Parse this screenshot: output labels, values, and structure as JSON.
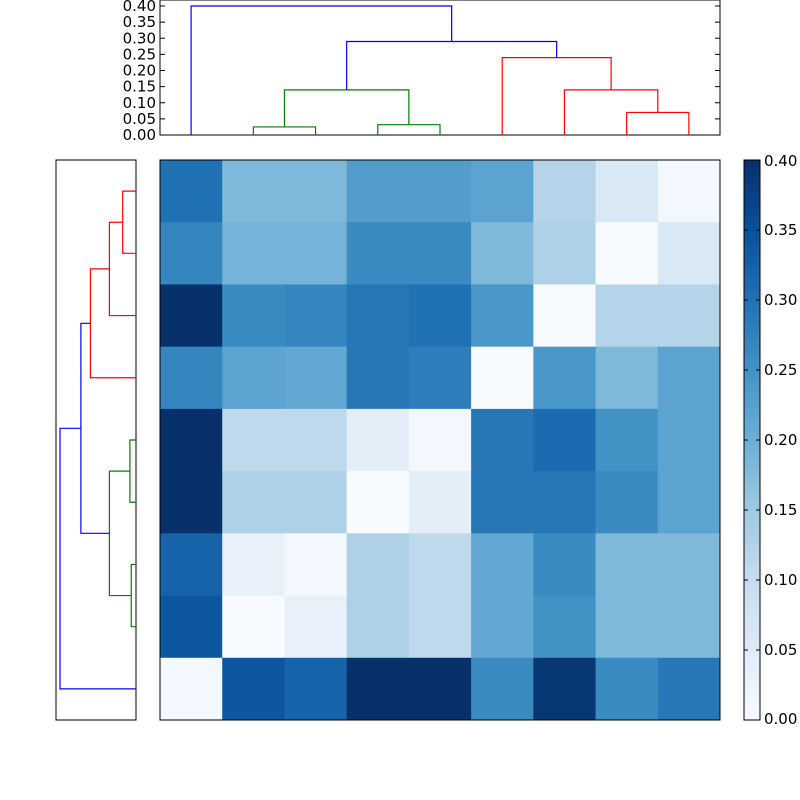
{
  "chart_data": [
    {
      "type": "dendrogram",
      "orientation": "top",
      "ylim": [
        0,
        0.4
      ],
      "yticks": [
        "0.00",
        "0.05",
        "0.10",
        "0.15",
        "0.20",
        "0.25",
        "0.30",
        "0.35",
        "0.40"
      ],
      "links": [
        {
          "xs": [
            1.5,
            1.5,
            2.5,
            2.5
          ],
          "ys": [
            0,
            0.025,
            0.025,
            0
          ],
          "color": "#008000"
        },
        {
          "xs": [
            3.5,
            3.5,
            4.5,
            4.5
          ],
          "ys": [
            0,
            0.032,
            0.032,
            0
          ],
          "color": "#008000"
        },
        {
          "xs": [
            2.0,
            2.0,
            4.0,
            4.0
          ],
          "ys": [
            0.025,
            0.14,
            0.14,
            0.032
          ],
          "color": "#008000"
        },
        {
          "xs": [
            7.5,
            7.5,
            8.5,
            8.5
          ],
          "ys": [
            0,
            0.07,
            0.07,
            0
          ],
          "color": "#ff0000"
        },
        {
          "xs": [
            6.5,
            6.5,
            8.0,
            8.0
          ],
          "ys": [
            0,
            0.14,
            0.14,
            0.07
          ],
          "color": "#ff0000"
        },
        {
          "xs": [
            5.5,
            5.5,
            7.25,
            7.25
          ],
          "ys": [
            0,
            0.24,
            0.24,
            0.14
          ],
          "color": "#ff0000"
        },
        {
          "xs": [
            3.0,
            3.0,
            6.375,
            6.375
          ],
          "ys": [
            0.14,
            0.29,
            0.29,
            0.24
          ],
          "color": "#0000ff"
        },
        {
          "xs": [
            0.5,
            0.5,
            4.6875,
            4.6875
          ],
          "ys": [
            0,
            0.4,
            0.4,
            0.29
          ],
          "color": "#0000ff"
        }
      ]
    },
    {
      "type": "dendrogram",
      "orientation": "left",
      "links": [
        {
          "ys": [
            1.5,
            1.5,
            2.5,
            2.5
          ],
          "xs": [
            0,
            0.025,
            0.025,
            0
          ],
          "color": "#008000"
        },
        {
          "ys": [
            3.5,
            3.5,
            4.5,
            4.5
          ],
          "xs": [
            0,
            0.032,
            0.032,
            0
          ],
          "color": "#008000"
        },
        {
          "ys": [
            2.0,
            2.0,
            4.0,
            4.0
          ],
          "xs": [
            0.025,
            0.14,
            0.14,
            0.032
          ],
          "color": "#008000"
        },
        {
          "ys": [
            7.5,
            7.5,
            8.5,
            8.5
          ],
          "xs": [
            0,
            0.07,
            0.07,
            0
          ],
          "color": "#ff0000"
        },
        {
          "ys": [
            6.5,
            6.5,
            8.0,
            8.0
          ],
          "xs": [
            0,
            0.14,
            0.14,
            0.07
          ],
          "color": "#ff0000"
        },
        {
          "ys": [
            5.5,
            5.5,
            7.25,
            7.25
          ],
          "xs": [
            0,
            0.24,
            0.24,
            0.14
          ],
          "color": "#ff0000"
        },
        {
          "ys": [
            3.0,
            3.0,
            6.375,
            6.375
          ],
          "xs": [
            0.14,
            0.29,
            0.29,
            0.24
          ],
          "color": "#0000ff"
        },
        {
          "ys": [
            0.5,
            0.5,
            4.6875,
            4.6875
          ],
          "xs": [
            0,
            0.4,
            0.4,
            0.29
          ],
          "color": "#0000ff"
        }
      ],
      "xlim": [
        0,
        0.4
      ]
    },
    {
      "type": "heatmap",
      "colormap": "Blues",
      "vmin": 0,
      "vmax": 0.4,
      "values": [
        [
          0.3,
          0.18,
          0.18,
          0.23,
          0.23,
          0.22,
          0.12,
          0.06,
          0.01
        ],
        [
          0.27,
          0.19,
          0.19,
          0.26,
          0.26,
          0.18,
          0.13,
          0.0,
          0.06
        ],
        [
          0.4,
          0.26,
          0.27,
          0.29,
          0.3,
          0.24,
          0.0,
          0.12,
          0.12
        ],
        [
          0.27,
          0.22,
          0.21,
          0.29,
          0.28,
          0.0,
          0.24,
          0.18,
          0.22
        ],
        [
          0.4,
          0.11,
          0.11,
          0.04,
          0.01,
          0.29,
          0.31,
          0.25,
          0.22
        ],
        [
          0.4,
          0.13,
          0.13,
          0.0,
          0.04,
          0.29,
          0.29,
          0.26,
          0.22
        ],
        [
          0.32,
          0.03,
          0.01,
          0.13,
          0.11,
          0.21,
          0.26,
          0.18,
          0.18
        ],
        [
          0.34,
          0.0,
          0.03,
          0.13,
          0.11,
          0.21,
          0.25,
          0.18,
          0.18
        ],
        [
          0.01,
          0.34,
          0.32,
          0.4,
          0.4,
          0.26,
          0.39,
          0.26,
          0.29
        ]
      ]
    },
    {
      "type": "colorbar",
      "vmin": 0,
      "vmax": 0.4,
      "tick_values": [
        0,
        0.05,
        0.1,
        0.15,
        0.2,
        0.25,
        0.3,
        0.35,
        0.4
      ],
      "tick_labels": [
        "0.00",
        "0.05",
        "0.10",
        "0.15",
        "0.20",
        "0.25",
        "0.30",
        "0.35",
        "0.40"
      ]
    }
  ]
}
